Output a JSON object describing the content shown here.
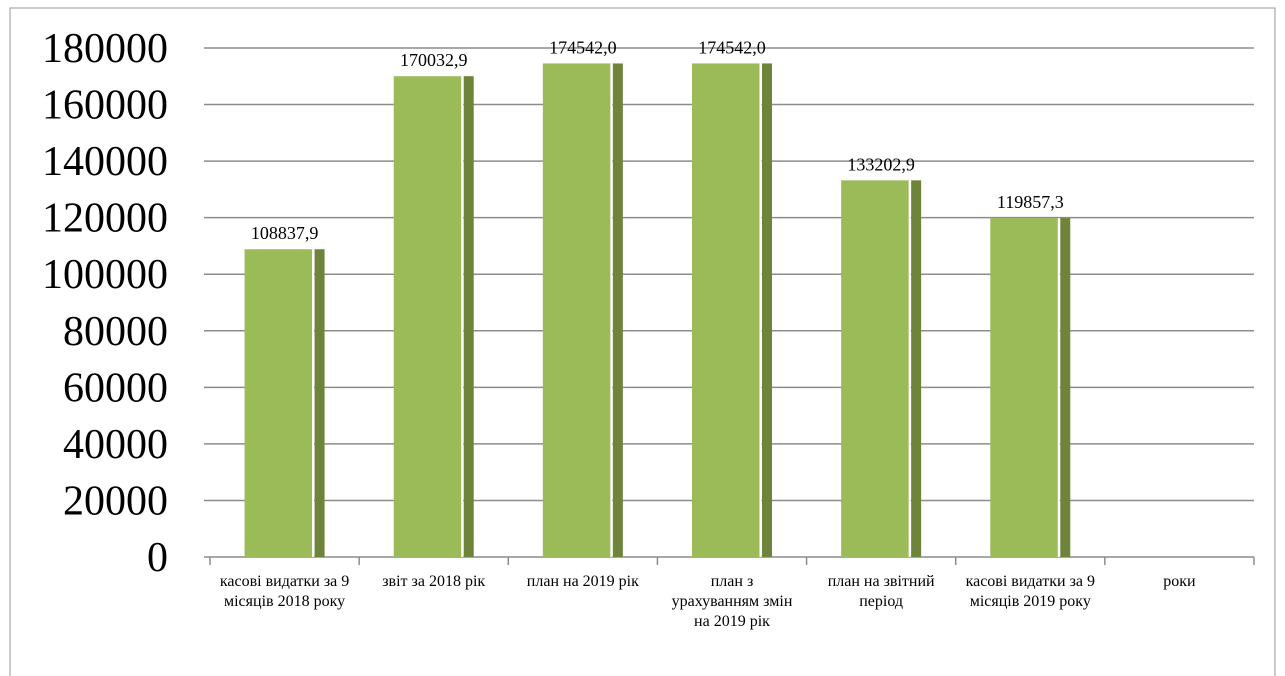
{
  "chart_data": {
    "type": "bar",
    "categories": [
      "касові видатки  за 9 місяців 2018 року",
      "звіт за 2018 рік",
      "план на 2019 рік",
      "план з урахуванням змін на  2019 рік",
      "план на звітний період",
      "касові видатки  за 9 місяців 2019 року",
      "роки"
    ],
    "values": [
      108837.9,
      170032.9,
      174542.0,
      174542.0,
      133202.9,
      119857.3,
      null
    ],
    "value_labels": [
      "108837,9",
      "170032,9",
      "174542,0",
      "174542,0",
      "133202,9",
      "119857,3",
      null
    ],
    "color": "#9bbb59",
    "ylim": [
      0,
      180000
    ],
    "yticks": [
      0,
      20000,
      40000,
      60000,
      80000,
      100000,
      120000,
      140000,
      160000,
      180000
    ],
    "grid": true
  }
}
